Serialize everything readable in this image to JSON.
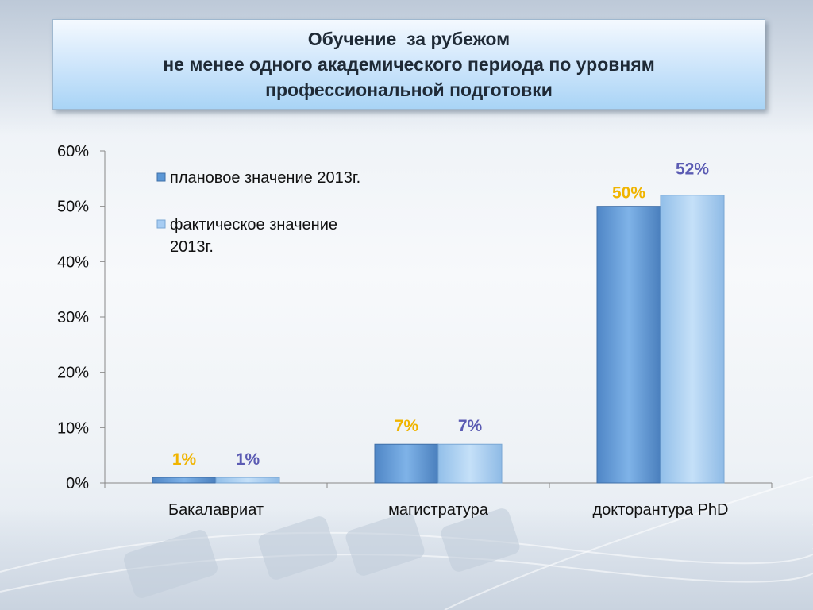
{
  "title": {
    "lines": [
      "Обучение  за рубежом",
      "не менее одного академического периода по уровням",
      "профессиональной подготовки"
    ]
  },
  "colors": {
    "plan": "#5b97d6",
    "fact": "#a7cdf3",
    "plan_label": "#f0b400",
    "fact_label": "#5b5bb3"
  },
  "chart_data": {
    "type": "bar",
    "categories": [
      "Бакалавриат",
      "магистратура",
      "докторантура PhD"
    ],
    "series": [
      {
        "name": "плановое значение 2013г.",
        "values": [
          1,
          7,
          50
        ],
        "labels": [
          "1%",
          "7%",
          "50%"
        ]
      },
      {
        "name": "фактическое значение 2013г.",
        "values": [
          1,
          7,
          52
        ],
        "labels": [
          "1%",
          "7%",
          "52%"
        ]
      }
    ],
    "yticks": [
      "0%",
      "10%",
      "20%",
      "30%",
      "40%",
      "50%",
      "60%"
    ],
    "ylim": [
      0,
      60
    ],
    "grid": false,
    "legend_position": "top-left"
  }
}
